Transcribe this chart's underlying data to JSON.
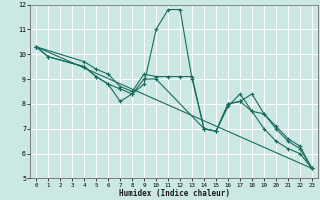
{
  "title": "",
  "xlabel": "Humidex (Indice chaleur)",
  "xlim": [
    -0.5,
    23.5
  ],
  "ylim": [
    5,
    12
  ],
  "xticks": [
    0,
    1,
    2,
    3,
    4,
    5,
    6,
    7,
    8,
    9,
    10,
    11,
    12,
    13,
    14,
    15,
    16,
    17,
    18,
    19,
    20,
    21,
    22,
    23
  ],
  "yticks": [
    5,
    6,
    7,
    8,
    9,
    10,
    11,
    12
  ],
  "bg_color": "#cce8e4",
  "line_color": "#1a6b5e",
  "grid_color": "#ffffff",
  "lines": [
    {
      "x": [
        0,
        1,
        4,
        5,
        6,
        7,
        8,
        9,
        10,
        11,
        12,
        13,
        14,
        15,
        16,
        17,
        18,
        19,
        20,
        21,
        22,
        23
      ],
      "y": [
        10.3,
        9.9,
        9.5,
        9.1,
        8.8,
        8.1,
        8.4,
        8.8,
        11.0,
        11.8,
        11.8,
        9.0,
        7.0,
        6.9,
        8.0,
        8.1,
        8.4,
        7.6,
        7.0,
        6.5,
        6.2,
        5.4
      ]
    },
    {
      "x": [
        0,
        1,
        4,
        5,
        6,
        7,
        8,
        9,
        10,
        14,
        15,
        16,
        17,
        18,
        19,
        20,
        21,
        22,
        23
      ],
      "y": [
        10.3,
        9.9,
        9.5,
        9.1,
        8.8,
        8.6,
        8.4,
        9.0,
        9.0,
        7.0,
        6.9,
        7.9,
        8.4,
        7.7,
        7.0,
        6.5,
        6.2,
        6.0,
        5.4
      ]
    },
    {
      "x": [
        0,
        4,
        5,
        6,
        7,
        8,
        9,
        10,
        11,
        12,
        13,
        14,
        15,
        16,
        17,
        18,
        19,
        20,
        21,
        22,
        23
      ],
      "y": [
        10.3,
        9.7,
        9.4,
        9.2,
        8.7,
        8.5,
        9.2,
        9.1,
        9.1,
        9.1,
        9.1,
        7.0,
        6.9,
        8.0,
        8.1,
        7.7,
        7.6,
        7.1,
        6.6,
        6.3,
        5.4
      ]
    },
    {
      "x": [
        0,
        23
      ],
      "y": [
        10.3,
        5.4
      ]
    }
  ]
}
